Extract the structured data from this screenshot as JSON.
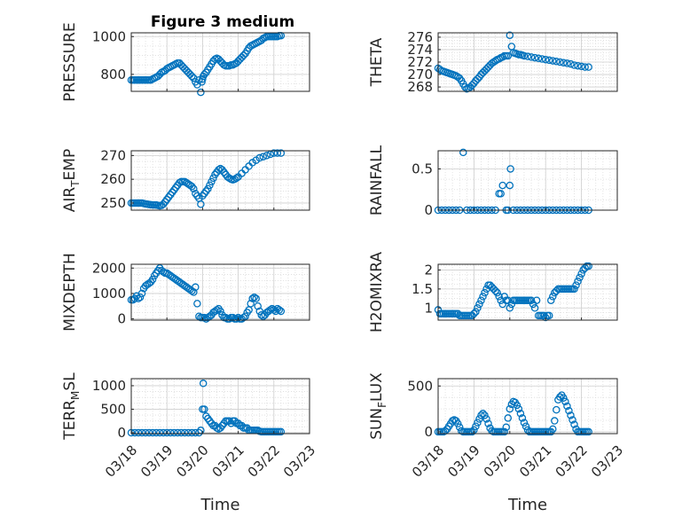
{
  "figure_title": "Figure 3 medium",
  "colors": {
    "marker": "#0072BD",
    "axis": "#262626",
    "grid": "#dcdcdc"
  },
  "chart_data": [
    {
      "type": "scatter",
      "title": "Figure 3 medium",
      "ylabel": "PRESSURE",
      "ylabel_sub": "",
      "xlabel": "",
      "xlim": [
        0,
        5
      ],
      "ylim": [
        710,
        1020
      ],
      "yticks": [
        800,
        1000
      ],
      "xticklabels": [],
      "grid": true,
      "x": [
        0,
        0.05,
        0.1,
        0.15,
        0.2,
        0.25,
        0.3,
        0.35,
        0.4,
        0.45,
        0.5,
        0.55,
        0.6,
        0.65,
        0.7,
        0.75,
        0.8,
        0.85,
        0.9,
        0.95,
        1,
        1.05,
        1.1,
        1.15,
        1.2,
        1.25,
        1.3,
        1.35,
        1.4,
        1.45,
        1.5,
        1.55,
        1.6,
        1.65,
        1.7,
        1.75,
        1.8,
        1.85,
        1.9,
        1.95,
        1.98,
        2.0,
        2.02,
        2.05,
        2.1,
        2.15,
        2.2,
        2.25,
        2.3,
        2.35,
        2.4,
        2.45,
        2.5,
        2.55,
        2.6,
        2.65,
        2.7,
        2.75,
        2.8,
        2.85,
        2.9,
        2.95,
        3,
        3.05,
        3.1,
        3.15,
        3.2,
        3.25,
        3.3,
        3.35,
        3.4,
        3.45,
        3.5,
        3.55,
        3.6,
        3.65,
        3.7,
        3.75,
        3.8,
        3.85,
        3.9,
        3.95,
        4,
        4.05,
        4.1,
        4.15,
        4.2
      ],
      "y": [
        770,
        770,
        770,
        770,
        770,
        770,
        770,
        770,
        770,
        770,
        770,
        770,
        775,
        780,
        785,
        790,
        800,
        810,
        815,
        820,
        830,
        835,
        840,
        845,
        850,
        855,
        860,
        860,
        850,
        840,
        830,
        820,
        810,
        800,
        790,
        780,
        760,
        745,
        770,
        705,
        760,
        775,
        790,
        800,
        810,
        825,
        840,
        855,
        870,
        880,
        885,
        880,
        870,
        860,
        850,
        845,
        845,
        845,
        850,
        850,
        855,
        860,
        870,
        880,
        890,
        900,
        910,
        925,
        940,
        950,
        955,
        960,
        965,
        970,
        975,
        980,
        990,
        995,
        1000,
        1000,
        1000,
        1000,
        1000,
        1000,
        1000,
        1005,
        1005
      ]
    },
    {
      "type": "scatter",
      "title": "",
      "ylabel": "THETA",
      "ylabel_sub": "",
      "xlabel": "",
      "xlim": [
        0,
        5
      ],
      "ylim": [
        267.3,
        276.7
      ],
      "yticks": [
        268,
        270,
        272,
        274,
        276
      ],
      "xticklabels": [],
      "grid": true,
      "x": [
        0,
        0.05,
        0.1,
        0.15,
        0.2,
        0.25,
        0.3,
        0.35,
        0.4,
        0.45,
        0.5,
        0.55,
        0.6,
        0.65,
        0.7,
        0.75,
        0.8,
        0.85,
        0.9,
        0.95,
        1,
        1.05,
        1.1,
        1.15,
        1.2,
        1.25,
        1.3,
        1.35,
        1.4,
        1.45,
        1.5,
        1.55,
        1.6,
        1.65,
        1.7,
        1.75,
        1.8,
        1.85,
        1.9,
        1.95,
        2.0,
        2.05,
        2.1,
        2.15,
        2.2,
        2.25,
        2.3,
        2.35,
        2.4,
        2.5,
        2.6,
        2.7,
        2.8,
        2.9,
        3.0,
        3.1,
        3.2,
        3.3,
        3.4,
        3.5,
        3.6,
        3.7,
        3.8,
        3.9,
        4.0,
        4.1,
        4.2
      ],
      "y": [
        271,
        270.8,
        270.6,
        270.5,
        270.4,
        270.3,
        270.2,
        270.1,
        270,
        269.9,
        269.8,
        269.6,
        269.4,
        269,
        268.5,
        268,
        267.7,
        267.8,
        268,
        268.3,
        268.6,
        269,
        269.3,
        269.6,
        270,
        270.3,
        270.6,
        270.9,
        271.2,
        271.5,
        271.8,
        272.0,
        272.2,
        272.4,
        272.5,
        272.7,
        272.8,
        273.0,
        273.0,
        273.0,
        276.3,
        274.5,
        273.5,
        273.4,
        273.3,
        273.2,
        273.2,
        273.1,
        273.0,
        272.9,
        272.8,
        272.7,
        272.6,
        272.5,
        272.4,
        272.3,
        272.2,
        272.1,
        272.0,
        271.9,
        271.8,
        271.7,
        271.5,
        271.4,
        271.3,
        271.2,
        271.2
      ]
    },
    {
      "type": "scatter",
      "title": "",
      "ylabel": "AIR",
      "ylabel_sub": "T",
      "ylabel_suffix": "EMP",
      "xlabel": "",
      "xlim": [
        0,
        5
      ],
      "ylim": [
        247,
        272
      ],
      "yticks": [
        250,
        260,
        270
      ],
      "xticklabels": [],
      "grid": true,
      "x": [
        0,
        0.05,
        0.1,
        0.15,
        0.2,
        0.25,
        0.3,
        0.35,
        0.4,
        0.45,
        0.5,
        0.55,
        0.6,
        0.65,
        0.7,
        0.75,
        0.8,
        0.85,
        0.9,
        0.95,
        1,
        1.05,
        1.1,
        1.15,
        1.2,
        1.25,
        1.3,
        1.35,
        1.4,
        1.45,
        1.5,
        1.55,
        1.6,
        1.65,
        1.7,
        1.75,
        1.8,
        1.85,
        1.9,
        1.95,
        2.0,
        2.05,
        2.1,
        2.15,
        2.2,
        2.25,
        2.3,
        2.35,
        2.4,
        2.45,
        2.5,
        2.55,
        2.6,
        2.65,
        2.7,
        2.75,
        2.8,
        2.85,
        2.9,
        2.95,
        3.0,
        3.1,
        3.2,
        3.3,
        3.4,
        3.5,
        3.6,
        3.7,
        3.8,
        3.9,
        4.0,
        4.1,
        4.2
      ],
      "y": [
        250,
        250,
        250,
        250,
        250,
        250,
        250,
        249.8,
        249.6,
        249.5,
        249.4,
        249.3,
        249.2,
        249.2,
        249.2,
        249,
        248.8,
        249,
        249.5,
        250.5,
        251.5,
        252.5,
        253.5,
        254.5,
        255.5,
        256.5,
        257.5,
        258.5,
        259,
        259,
        259,
        258.5,
        258,
        257.5,
        257,
        256,
        254,
        253,
        252,
        249.5,
        253,
        254,
        255,
        256,
        257.5,
        259,
        260.5,
        262,
        263,
        264,
        264.5,
        264,
        263,
        262,
        261,
        260.5,
        260,
        259.8,
        260,
        260.5,
        261,
        262.5,
        264,
        265.5,
        267,
        268,
        269,
        269.5,
        270,
        270.5,
        271,
        271,
        271
      ]
    },
    {
      "type": "scatter",
      "title": "",
      "ylabel": "RAINFALL",
      "ylabel_sub": "",
      "xlabel": "",
      "xlim": [
        0,
        5
      ],
      "ylim": [
        0,
        0.72
      ],
      "yticks": [
        0,
        0.5
      ],
      "xticklabels": [],
      "grid": true,
      "x": [
        0,
        0.1,
        0.2,
        0.3,
        0.4,
        0.5,
        0.6,
        0.7,
        0.8,
        0.9,
        1.0,
        1.1,
        1.2,
        1.3,
        1.4,
        1.5,
        1.6,
        1.7,
        1.75,
        1.8,
        1.9,
        1.95,
        2.0,
        2.02,
        2.1,
        2.2,
        2.3,
        2.4,
        2.5,
        2.6,
        2.7,
        2.8,
        2.9,
        3.0,
        3.1,
        3.2,
        3.3,
        3.4,
        3.5,
        3.6,
        3.7,
        3.8,
        3.9,
        4.0,
        4.1,
        4.2
      ],
      "y": [
        0,
        0,
        0,
        0,
        0,
        0,
        0,
        0.7,
        0,
        0,
        0,
        0,
        0,
        0,
        0,
        0,
        0,
        0.2,
        0.2,
        0.3,
        0,
        0,
        0.3,
        0.5,
        0,
        0,
        0,
        0,
        0,
        0,
        0,
        0,
        0,
        0,
        0,
        0,
        0,
        0,
        0,
        0,
        0,
        0,
        0,
        0,
        0,
        0
      ]
    },
    {
      "type": "scatter",
      "title": "",
      "ylabel": "MIXDEPTH",
      "ylabel_sub": "",
      "xlabel": "",
      "xlim": [
        0,
        5
      ],
      "ylim": [
        -50,
        2150
      ],
      "yticks": [
        0,
        1000,
        2000
      ],
      "xticklabels": [],
      "grid": true,
      "x": [
        0,
        0.05,
        0.1,
        0.15,
        0.2,
        0.25,
        0.3,
        0.35,
        0.4,
        0.45,
        0.5,
        0.55,
        0.6,
        0.65,
        0.7,
        0.75,
        0.8,
        0.85,
        0.9,
        0.95,
        1,
        1.05,
        1.1,
        1.15,
        1.2,
        1.25,
        1.3,
        1.35,
        1.4,
        1.45,
        1.5,
        1.55,
        1.6,
        1.65,
        1.7,
        1.75,
        1.8,
        1.85,
        1.9,
        1.95,
        2.0,
        2.05,
        2.1,
        2.15,
        2.2,
        2.25,
        2.3,
        2.35,
        2.4,
        2.45,
        2.5,
        2.55,
        2.6,
        2.65,
        2.7,
        2.75,
        2.8,
        2.85,
        2.9,
        2.95,
        3.0,
        3.05,
        3.1,
        3.15,
        3.2,
        3.25,
        3.3,
        3.35,
        3.4,
        3.45,
        3.5,
        3.55,
        3.6,
        3.65,
        3.7,
        3.75,
        3.8,
        3.85,
        3.9,
        3.95,
        4.0,
        4.05,
        4.1,
        4.15,
        4.2
      ],
      "y": [
        750,
        750,
        800,
        900,
        800,
        850,
        1000,
        1200,
        1300,
        1350,
        1400,
        1450,
        1550,
        1700,
        1800,
        1900,
        2000,
        1900,
        1850,
        1800,
        1800,
        1750,
        1700,
        1650,
        1600,
        1550,
        1500,
        1450,
        1400,
        1350,
        1300,
        1250,
        1200,
        1150,
        1100,
        1050,
        1250,
        600,
        100,
        50,
        50,
        50,
        0,
        50,
        100,
        150,
        250,
        300,
        350,
        400,
        300,
        150,
        50,
        50,
        0,
        0,
        50,
        50,
        0,
        0,
        50,
        0,
        0,
        50,
        100,
        250,
        350,
        600,
        800,
        850,
        800,
        500,
        300,
        150,
        100,
        150,
        250,
        300,
        350,
        400,
        350,
        300,
        400,
        350,
        300
      ]
    },
    {
      "type": "scatter",
      "title": "",
      "ylabel": "H2OMIXRA",
      "ylabel_sub": "",
      "xlabel": "",
      "xlim": [
        0,
        5
      ],
      "ylim": [
        0.68,
        2.15
      ],
      "yticks": [
        1,
        1.5,
        2
      ],
      "xticklabels": [],
      "grid": true,
      "x": [
        0,
        0.05,
        0.1,
        0.15,
        0.2,
        0.25,
        0.3,
        0.35,
        0.4,
        0.45,
        0.5,
        0.55,
        0.6,
        0.65,
        0.7,
        0.75,
        0.8,
        0.85,
        0.9,
        0.95,
        1,
        1.05,
        1.1,
        1.15,
        1.2,
        1.25,
        1.3,
        1.35,
        1.4,
        1.45,
        1.5,
        1.55,
        1.6,
        1.65,
        1.7,
        1.75,
        1.8,
        1.85,
        1.9,
        1.95,
        2.0,
        2.05,
        2.1,
        2.15,
        2.2,
        2.25,
        2.3,
        2.35,
        2.4,
        2.45,
        2.5,
        2.55,
        2.6,
        2.65,
        2.7,
        2.75,
        2.8,
        2.85,
        2.9,
        2.95,
        3.0,
        3.05,
        3.1,
        3.15,
        3.2,
        3.25,
        3.3,
        3.35,
        3.4,
        3.45,
        3.5,
        3.55,
        3.6,
        3.65,
        3.7,
        3.75,
        3.8,
        3.85,
        3.9,
        3.95,
        4.0,
        4.05,
        4.1,
        4.15,
        4.2
      ],
      "y": [
        0.95,
        0.85,
        0.85,
        0.85,
        0.85,
        0.85,
        0.85,
        0.85,
        0.85,
        0.85,
        0.85,
        0.85,
        0.8,
        0.8,
        0.8,
        0.8,
        0.8,
        0.8,
        0.8,
        0.8,
        0.85,
        0.9,
        1.0,
        1.1,
        1.2,
        1.3,
        1.4,
        1.5,
        1.6,
        1.6,
        1.55,
        1.5,
        1.45,
        1.4,
        1.3,
        1.2,
        1.1,
        1.3,
        1.2,
        1.2,
        1.0,
        1.1,
        1.2,
        1.2,
        1.2,
        1.2,
        1.2,
        1.2,
        1.2,
        1.2,
        1.2,
        1.2,
        1.2,
        1.1,
        1.0,
        1.2,
        0.8,
        0.8,
        0.8,
        0.8,
        0.75,
        0.8,
        0.8,
        1.2,
        1.3,
        1.4,
        1.45,
        1.5,
        1.5,
        1.5,
        1.5,
        1.5,
        1.5,
        1.5,
        1.5,
        1.5,
        1.5,
        1.6,
        1.7,
        1.8,
        1.9,
        2.0,
        2.05,
        2.1,
        2.1
      ]
    },
    {
      "type": "scatter",
      "title": "",
      "ylabel": "TERR",
      "ylabel_sub": "M",
      "ylabel_suffix": "SL",
      "xlabel": "Time",
      "xlim": [
        0,
        5
      ],
      "ylim": [
        -20,
        1150
      ],
      "yticks": [
        0,
        500,
        1000
      ],
      "xticklabels": [
        "03/18",
        "03/19",
        "03/20",
        "03/21",
        "03/22",
        "03/23"
      ],
      "grid": true,
      "x": [
        0,
        0.1,
        0.2,
        0.3,
        0.4,
        0.5,
        0.6,
        0.7,
        0.8,
        0.9,
        1.0,
        1.1,
        1.2,
        1.3,
        1.4,
        1.5,
        1.6,
        1.7,
        1.8,
        1.9,
        1.95,
        2.0,
        2.02,
        2.05,
        2.1,
        2.15,
        2.2,
        2.25,
        2.3,
        2.35,
        2.4,
        2.45,
        2.5,
        2.55,
        2.6,
        2.65,
        2.7,
        2.75,
        2.8,
        2.85,
        2.9,
        2.95,
        3.0,
        3.05,
        3.1,
        3.15,
        3.2,
        3.25,
        3.3,
        3.35,
        3.4,
        3.45,
        3.5,
        3.55,
        3.6,
        3.65,
        3.7,
        3.75,
        3.8,
        3.85,
        3.9,
        3.95,
        4.0,
        4.05,
        4.1,
        4.15,
        4.2
      ],
      "y": [
        0,
        0,
        0,
        0,
        0,
        0,
        0,
        0,
        0,
        0,
        0,
        0,
        0,
        0,
        0,
        0,
        0,
        0,
        0,
        0,
        50,
        500,
        1050,
        500,
        350,
        300,
        250,
        200,
        150,
        150,
        100,
        80,
        100,
        150,
        200,
        250,
        250,
        250,
        200,
        250,
        250,
        200,
        200,
        150,
        150,
        100,
        100,
        100,
        50,
        50,
        50,
        50,
        50,
        50,
        30,
        20,
        20,
        20,
        20,
        20,
        20,
        20,
        20,
        20,
        20,
        20,
        20
      ]
    },
    {
      "type": "scatter",
      "title": "",
      "ylabel": "SUN",
      "ylabel_sub": "F",
      "ylabel_suffix": "LUX",
      "xlabel": "Time",
      "xlim": [
        0,
        5
      ],
      "ylim": [
        -20,
        580
      ],
      "yticks": [
        0,
        500
      ],
      "xticklabels": [
        "03/18",
        "03/19",
        "03/20",
        "03/21",
        "03/22",
        "03/23"
      ],
      "grid": true,
      "x": [
        0,
        0.05,
        0.1,
        0.15,
        0.2,
        0.25,
        0.3,
        0.35,
        0.4,
        0.45,
        0.5,
        0.55,
        0.6,
        0.65,
        0.7,
        0.75,
        0.8,
        0.85,
        0.9,
        0.95,
        1.0,
        1.05,
        1.1,
        1.15,
        1.2,
        1.25,
        1.3,
        1.35,
        1.4,
        1.45,
        1.5,
        1.55,
        1.6,
        1.65,
        1.7,
        1.75,
        1.8,
        1.85,
        1.9,
        1.95,
        2.0,
        2.05,
        2.1,
        2.15,
        2.2,
        2.25,
        2.3,
        2.35,
        2.4,
        2.45,
        2.5,
        2.55,
        2.6,
        2.65,
        2.7,
        2.75,
        2.8,
        2.85,
        2.9,
        2.95,
        3.0,
        3.05,
        3.1,
        3.15,
        3.2,
        3.25,
        3.3,
        3.35,
        3.4,
        3.45,
        3.5,
        3.55,
        3.6,
        3.65,
        3.7,
        3.75,
        3.8,
        3.85,
        3.9,
        3.95,
        4.0,
        4.05,
        4.1,
        4.15,
        4.2
      ],
      "y": [
        0,
        0,
        0,
        0,
        10,
        30,
        60,
        90,
        120,
        130,
        120,
        90,
        50,
        10,
        0,
        0,
        0,
        0,
        0,
        0,
        20,
        60,
        100,
        140,
        180,
        200,
        180,
        140,
        90,
        40,
        10,
        0,
        0,
        0,
        0,
        0,
        0,
        0,
        50,
        150,
        250,
        300,
        330,
        320,
        290,
        250,
        200,
        150,
        100,
        60,
        20,
        0,
        0,
        0,
        0,
        0,
        0,
        0,
        0,
        0,
        0,
        0,
        0,
        0,
        30,
        120,
        240,
        350,
        380,
        400,
        370,
        330,
        280,
        230,
        180,
        130,
        80,
        30,
        0,
        0,
        0,
        0,
        0,
        0,
        0
      ]
    }
  ]
}
